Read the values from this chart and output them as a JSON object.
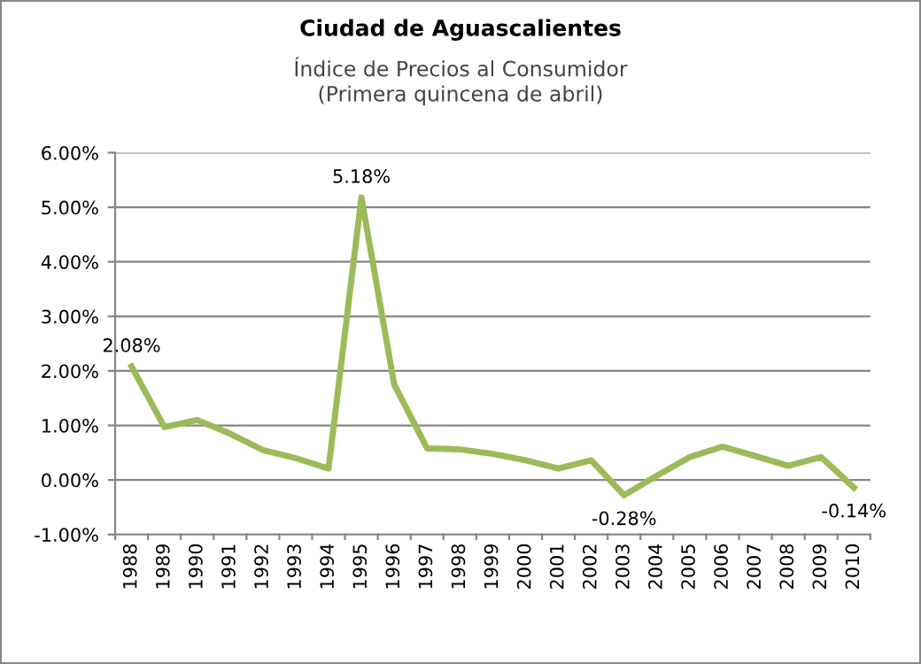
{
  "chart_data": {
    "type": "line",
    "title": "Ciudad de Aguascalientes",
    "subtitle": "Índice de Precios al Consumidor\n(Primera quincena de abril)",
    "categories": [
      "1988",
      "1989",
      "1990",
      "1991",
      "1992",
      "1993",
      "1994",
      "1995",
      "1996",
      "1997",
      "1998",
      "1999",
      "2000",
      "2001",
      "2002",
      "2003",
      "2004",
      "2005",
      "2006",
      "2007",
      "2008",
      "2009",
      "2010"
    ],
    "series": [
      {
        "color": "#9bbb59",
        "values": [
          2.08,
          0.97,
          1.1,
          0.85,
          0.55,
          0.4,
          0.21,
          5.18,
          1.75,
          0.58,
          0.56,
          0.48,
          0.36,
          0.21,
          0.36,
          -0.28,
          0.08,
          0.42,
          0.61,
          0.44,
          0.26,
          0.42,
          -0.14
        ]
      }
    ],
    "ylim": [
      -1,
      6
    ],
    "yticks": [
      {
        "value": -1,
        "label": "-1.00%"
      },
      {
        "value": 0,
        "label": "0.00%"
      },
      {
        "value": 1,
        "label": "1.00%"
      },
      {
        "value": 2,
        "label": "2.00%"
      },
      {
        "value": 3,
        "label": "3.00%"
      },
      {
        "value": 4,
        "label": "4.00%"
      },
      {
        "value": 5,
        "label": "5.00%"
      },
      {
        "value": 6,
        "label": "6.00%"
      }
    ],
    "annotations": [
      {
        "text": "2.08%",
        "x": "1988",
        "y": 2.08
      },
      {
        "text": "5.18%",
        "x": "1995",
        "y": 5.18
      },
      {
        "text": "-0.28%",
        "x": "2003",
        "y": -0.28
      },
      {
        "text": "-0.14%",
        "x": "2010",
        "y": -0.14
      }
    ],
    "grid": "y",
    "legend": false,
    "marker": "none",
    "line_style": "solid"
  }
}
